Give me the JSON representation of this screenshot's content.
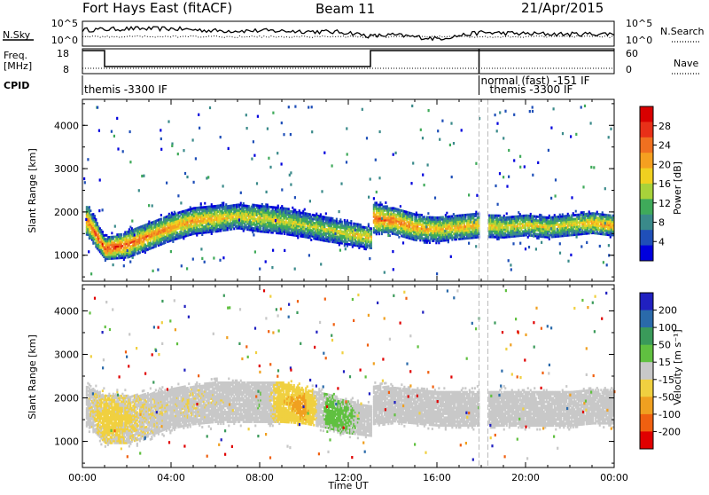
{
  "header": {
    "title": "Fort Hays East (fitACF)",
    "beam": "Beam 11",
    "date": "21/Apr/2015"
  },
  "top_panels": {
    "nsky_label": "N.Sky",
    "nsky_ticks": [
      "10^5",
      "10^0"
    ],
    "nsearch_label": "N.Search",
    "nsearch_ticks": [
      "10^5",
      "10^0"
    ],
    "freq_label_1": "Freq.",
    "freq_label_2": "[MHz]",
    "freq_ticks": [
      "18",
      "8"
    ],
    "nave_label": "Nave",
    "nave_ticks": [
      "60",
      "0"
    ],
    "cpid_label": "CPID",
    "cpid_entries": [
      {
        "text": "themis -3300 IF",
        "start_hour": 0.0
      },
      {
        "text": "normal (fast) -151 IF",
        "start_hour": 17.9
      },
      {
        "text": "themis -3300 IF",
        "start_hour": 18.3
      }
    ]
  },
  "power_panel": {
    "colorbar_label": "Power [dB]",
    "colorbar_ticks": [
      "28",
      "24",
      "20",
      "16",
      "12",
      "8",
      "4"
    ]
  },
  "velocity_panel": {
    "colorbar_label": "Velocity [m s⁻¹]",
    "colorbar_ticks": [
      "200",
      "100",
      "50",
      "15",
      "-15",
      "-50",
      "-100",
      "-200"
    ]
  },
  "colors": {
    "power_scale": [
      "#0000dd",
      "#1f4fb8",
      "#3a8a8a",
      "#3faa5a",
      "#a8d23a",
      "#f0d020",
      "#f5a020",
      "#f07020",
      "#e83018",
      "#d80000"
    ],
    "velocity_scale": [
      "#e00000",
      "#f06010",
      "#f0a020",
      "#f0d040",
      "#c8c8c8",
      "#60c040",
      "#3a9a5a",
      "#2a6aaa",
      "#2020c0"
    ]
  },
  "chart_data": [
    {
      "type": "heatmap",
      "title": "Power",
      "xlabel": "",
      "ylabel": "Slant Range [km]",
      "x_ticks": [
        "00:00",
        "04:00",
        "08:00",
        "12:00",
        "16:00",
        "20:00",
        "00:00"
      ],
      "y_ticks": [
        "1000",
        "2000",
        "3000",
        "4000"
      ],
      "xlim_hours": [
        0,
        24
      ],
      "ylim_km": [
        400,
        4600
      ],
      "zlabel": "Power [dB]",
      "zlim": [
        0,
        32
      ],
      "echo_band": {
        "time_hours": [
          0.2,
          1.0,
          2.0,
          3.0,
          4.0,
          5.0,
          6.0,
          7.0,
          8.0,
          9.0,
          10.0,
          11.0,
          12.0,
          13.0,
          13.1,
          14.0,
          15.0,
          16.0,
          17.0,
          18.0,
          19.0,
          20.0,
          21.0,
          22.0,
          23.0,
          23.8
        ],
        "center_km": [
          1800,
          1150,
          1250,
          1450,
          1650,
          1800,
          1850,
          1900,
          1850,
          1800,
          1700,
          1600,
          1500,
          1400,
          1850,
          1800,
          1650,
          1600,
          1650,
          1700,
          1650,
          1700,
          1650,
          1700,
          1750,
          1700
        ],
        "half_width_km": [
          350,
          250,
          300,
          300,
          300,
          300,
          300,
          280,
          300,
          300,
          280,
          280,
          260,
          250,
          350,
          300,
          300,
          280,
          280,
          280,
          250,
          250,
          250,
          250,
          250,
          250
        ],
        "peak_power_db": [
          24,
          28,
          26,
          24,
          22,
          22,
          20,
          18,
          18,
          18,
          16,
          16,
          18,
          20,
          26,
          24,
          22,
          20,
          20,
          20,
          18,
          18,
          18,
          18,
          20,
          22
        ]
      },
      "data_gaps_hours": [
        [
          13.0,
          13.1
        ],
        [
          17.9,
          18.3
        ]
      ]
    },
    {
      "type": "heatmap",
      "title": "Velocity",
      "xlabel": "Time UT",
      "ylabel": "Slant Range [km]",
      "x_ticks": [
        "00:00",
        "04:00",
        "08:00",
        "12:00",
        "16:00",
        "20:00",
        "00:00"
      ],
      "y_ticks": [
        "1000",
        "2000",
        "3000",
        "4000"
      ],
      "xlim_hours": [
        0,
        24
      ],
      "ylim_km": [
        400,
        4600
      ],
      "zlabel": "Velocity [m s⁻¹]",
      "zlim": [
        -200,
        200
      ],
      "echo_band": {
        "time_hours": [
          0.2,
          1.0,
          2.0,
          3.0,
          4.0,
          5.0,
          6.0,
          7.0,
          8.0,
          9.0,
          10.0,
          11.0,
          12.0,
          13.0,
          13.1,
          14.0,
          15.0,
          16.0,
          17.0,
          18.0,
          19.0,
          20.0,
          21.0,
          22.0,
          23.0,
          23.8
        ],
        "center_km": [
          1800,
          1500,
          1500,
          1600,
          1750,
          1850,
          1900,
          1900,
          1900,
          1900,
          1800,
          1700,
          1550,
          1450,
          1850,
          1850,
          1800,
          1750,
          1750,
          1750,
          1750,
          1750,
          1750,
          1750,
          1800,
          1800
        ],
        "half_width_km": [
          450,
          550,
          550,
          500,
          450,
          450,
          450,
          450,
          450,
          450,
          400,
          400,
          380,
          350,
          450,
          400,
          400,
          400,
          400,
          400,
          400,
          400,
          400,
          400,
          400,
          400
        ],
        "velocity_ms": [
          -15,
          -40,
          -30,
          -20,
          -15,
          -20,
          -15,
          -10,
          20,
          -60,
          -90,
          40,
          30,
          0,
          0,
          0,
          0,
          0,
          0,
          0,
          0,
          0,
          0,
          0,
          0,
          0
        ]
      },
      "data_gaps_hours": [
        [
          13.0,
          13.1
        ],
        [
          17.9,
          18.3
        ]
      ]
    }
  ],
  "nsky_series": {
    "time_hours": [
      0,
      2,
      4,
      6,
      8,
      10,
      12,
      13,
      14,
      16,
      17,
      18,
      20,
      22,
      24
    ],
    "level": [
      0.65,
      0.7,
      0.7,
      0.62,
      0.62,
      0.6,
      0.55,
      0.4,
      0.45,
      0.3,
      0.42,
      0.55,
      0.5,
      0.48,
      0.5
    ]
  },
  "freq_series": {
    "time_hours": [
      0,
      1.0,
      1.0,
      13.0,
      13.0,
      24
    ],
    "mhz": [
      18,
      18,
      10.5,
      10.5,
      18,
      18
    ]
  },
  "nave_series": {
    "time_hours": [
      0,
      24
    ],
    "value": [
      10,
      10
    ]
  }
}
